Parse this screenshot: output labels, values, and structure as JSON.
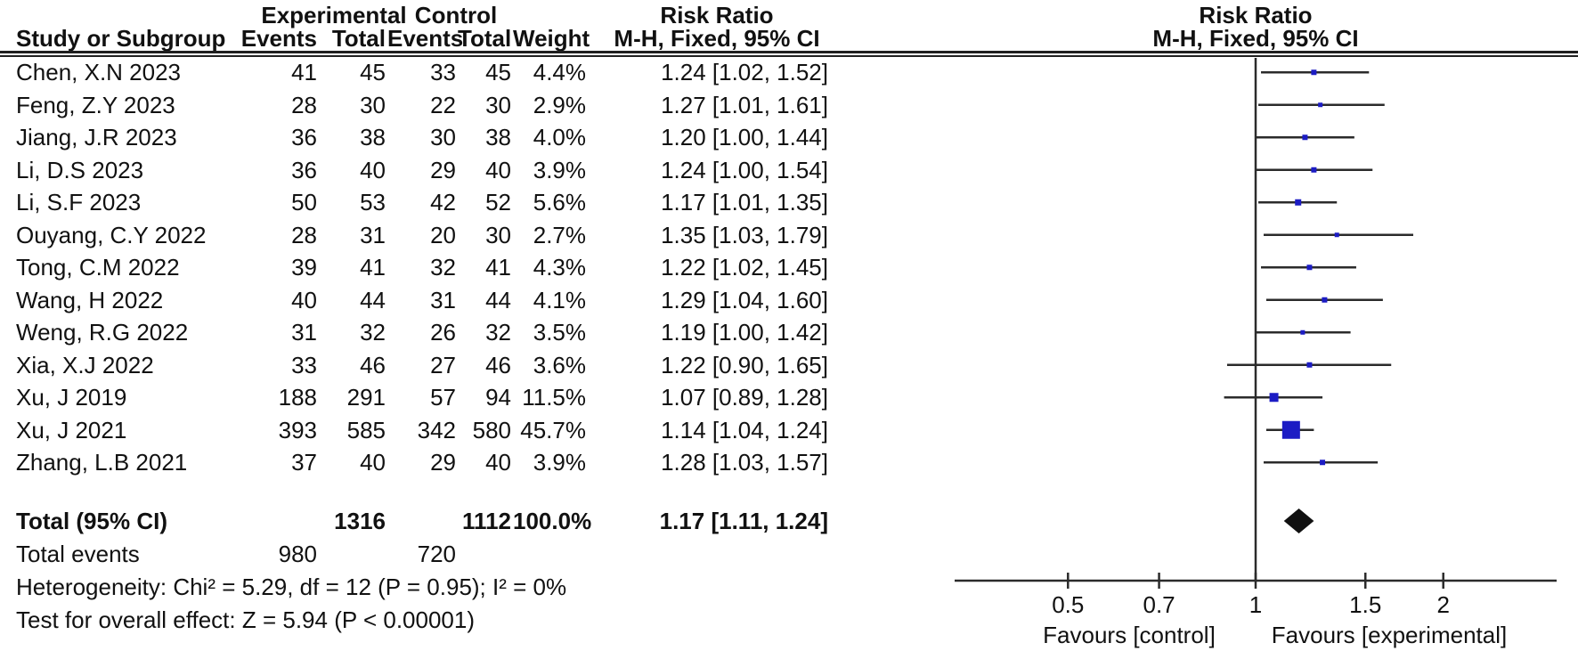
{
  "figure": {
    "columns": {
      "group_experimental": "Experimental",
      "group_control": "Control",
      "risk_ratio_table": "Risk Ratio",
      "risk_ratio_plot": "Risk Ratio",
      "study": "Study or Subgroup",
      "exp_events": "Events",
      "exp_total": "Total",
      "ctrl_events": "Events",
      "ctrl_total": "Total",
      "weight": "Weight",
      "mh_fixed_table": "M-H, Fixed, 95% CI",
      "mh_fixed_plot": "M-H, Fixed, 95% CI"
    },
    "footer": {
      "total_events_label": "Total events",
      "heterogeneity": "Heterogeneity: Chi² = 5.29, df = 12 (P = 0.95); I² = 0%",
      "overall_effect": "Test for overall effect: Z = 5.94 (P < 0.00001)"
    }
  },
  "chart_data": {
    "type": "scatter",
    "subtype": "forest-plot-meta-analysis",
    "effect_measure": "Risk Ratio (M-H, Fixed, 95% CI)",
    "x_scale": "log",
    "x_ticks": [
      0.5,
      0.7,
      1,
      1.5,
      2
    ],
    "x_tick_labels": [
      "0.5",
      "0.7",
      "1",
      "1.5",
      "2"
    ],
    "x_range_shown": [
      0.33,
      3.0
    ],
    "favours_left": "Favours [control]",
    "favours_right": "Favours [experimental]",
    "studies": [
      {
        "study": "Chen, X.N 2023",
        "exp_events": "41",
        "exp_total": "45",
        "ctrl_events": "33",
        "ctrl_total": "45",
        "weight": "4.4%",
        "ci": "1.24 [1.02, 1.52]",
        "rr": 1.24,
        "lo": 1.02,
        "hi": 1.52
      },
      {
        "study": "Feng, Z.Y 2023",
        "exp_events": "28",
        "exp_total": "30",
        "ctrl_events": "22",
        "ctrl_total": "30",
        "weight": "2.9%",
        "ci": "1.27 [1.01, 1.61]",
        "rr": 1.27,
        "lo": 1.01,
        "hi": 1.61
      },
      {
        "study": "Jiang, J.R 2023",
        "exp_events": "36",
        "exp_total": "38",
        "ctrl_events": "30",
        "ctrl_total": "38",
        "weight": "4.0%",
        "ci": "1.20 [1.00, 1.44]",
        "rr": 1.2,
        "lo": 1.0,
        "hi": 1.44
      },
      {
        "study": "Li, D.S 2023",
        "exp_events": "36",
        "exp_total": "40",
        "ctrl_events": "29",
        "ctrl_total": "40",
        "weight": "3.9%",
        "ci": "1.24 [1.00, 1.54]",
        "rr": 1.24,
        "lo": 1.0,
        "hi": 1.54
      },
      {
        "study": "Li, S.F 2023",
        "exp_events": "50",
        "exp_total": "53",
        "ctrl_events": "42",
        "ctrl_total": "52",
        "weight": "5.6%",
        "ci": "1.17 [1.01, 1.35]",
        "rr": 1.17,
        "lo": 1.01,
        "hi": 1.35
      },
      {
        "study": "Ouyang, C.Y 2022",
        "exp_events": "28",
        "exp_total": "31",
        "ctrl_events": "20",
        "ctrl_total": "30",
        "weight": "2.7%",
        "ci": "1.35 [1.03, 1.79]",
        "rr": 1.35,
        "lo": 1.03,
        "hi": 1.79
      },
      {
        "study": "Tong, C.M 2022",
        "exp_events": "39",
        "exp_total": "41",
        "ctrl_events": "32",
        "ctrl_total": "41",
        "weight": "4.3%",
        "ci": "1.22 [1.02, 1.45]",
        "rr": 1.22,
        "lo": 1.02,
        "hi": 1.45
      },
      {
        "study": "Wang, H 2022",
        "exp_events": "40",
        "exp_total": "44",
        "ctrl_events": "31",
        "ctrl_total": "44",
        "weight": "4.1%",
        "ci": "1.29 [1.04, 1.60]",
        "rr": 1.29,
        "lo": 1.04,
        "hi": 1.6
      },
      {
        "study": "Weng, R.G 2022",
        "exp_events": "31",
        "exp_total": "32",
        "ctrl_events": "26",
        "ctrl_total": "32",
        "weight": "3.5%",
        "ci": "1.19 [1.00, 1.42]",
        "rr": 1.19,
        "lo": 1.0,
        "hi": 1.42
      },
      {
        "study": "Xia, X.J 2022",
        "exp_events": "33",
        "exp_total": "46",
        "ctrl_events": "27",
        "ctrl_total": "46",
        "weight": "3.6%",
        "ci": "1.22 [0.90, 1.65]",
        "rr": 1.22,
        "lo": 0.9,
        "hi": 1.65
      },
      {
        "study": "Xu, J 2019",
        "exp_events": "188",
        "exp_total": "291",
        "ctrl_events": "57",
        "ctrl_total": "94",
        "weight": "11.5%",
        "ci": "1.07 [0.89, 1.28]",
        "rr": 1.07,
        "lo": 0.89,
        "hi": 1.28
      },
      {
        "study": "Xu, J 2021",
        "exp_events": "393",
        "exp_total": "585",
        "ctrl_events": "342",
        "ctrl_total": "580",
        "weight": "45.7%",
        "ci": "1.14 [1.04, 1.24]",
        "rr": 1.14,
        "lo": 1.04,
        "hi": 1.24
      },
      {
        "study": "Zhang, L.B 2021",
        "exp_events": "37",
        "exp_total": "40",
        "ctrl_events": "29",
        "ctrl_total": "40",
        "weight": "3.9%",
        "ci": "1.28 [1.03, 1.57]",
        "rr": 1.28,
        "lo": 1.03,
        "hi": 1.57
      }
    ],
    "total": {
      "study": "Total (95% CI)",
      "exp_total": "1316",
      "ctrl_total": "1112",
      "weight": "100.0%",
      "ci": "1.17 [1.11, 1.24]",
      "rr": 1.17,
      "lo": 1.11,
      "hi": 1.24
    },
    "total_events": {
      "exp": "980",
      "ctrl": "720"
    },
    "colors": {
      "marker": "#1c1cc4",
      "diamond": "#111111",
      "ci_line": "#2b2b2b",
      "axis": "#2b2b2b"
    }
  }
}
